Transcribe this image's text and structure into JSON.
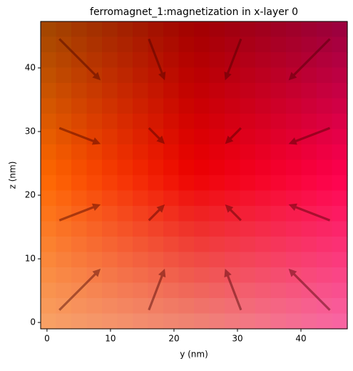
{
  "chart_data": {
    "type": "quiver",
    "title": "ferromagnet_1:magnetization in x-layer 0",
    "x_label": "y (nm)",
    "y_label": "z (nm)",
    "x": [
      5.2,
      17.3,
      29.3,
      41.3,
      5.2,
      17.3,
      29.3,
      41.3,
      5.2,
      17.3,
      29.3,
      41.3,
      5.2,
      17.3,
      29.3,
      41.3
    ],
    "y": [
      41.3,
      41.3,
      41.3,
      41.3,
      29.3,
      29.3,
      29.3,
      29.3,
      17.3,
      17.3,
      17.3,
      17.3,
      5.2,
      5.2,
      5.2,
      5.2
    ],
    "u": [
      6.5,
      2.5,
      -2.5,
      -6.5,
      6.5,
      2.5,
      -2.5,
      -6.5,
      6.5,
      2.5,
      -2.5,
      -6.5,
      6.5,
      2.5,
      -2.5,
      -6.5
    ],
    "v": [
      -6.5,
      -6.5,
      -6.5,
      -6.5,
      -2.5,
      -2.5,
      -2.5,
      -2.5,
      2.5,
      2.5,
      2.5,
      2.5,
      6.5,
      6.5,
      6.5,
      6.5
    ],
    "color": "rgba(70,0,0,0.45)",
    "background_colors": [
      [
        "#a04800",
        "#a00000",
        "#980040"
      ],
      [
        "#ff6a00",
        "#ee0000",
        "#ff0050"
      ],
      [
        "#f8a468",
        "#f08878",
        "#f868a8"
      ]
    ],
    "xlim": [
      -1.0,
      47.3
    ],
    "ylim": [
      -1.0,
      47.3
    ],
    "xticks": [
      0,
      10,
      20,
      30,
      40
    ],
    "yticks": [
      0,
      10,
      20,
      30,
      40
    ]
  }
}
